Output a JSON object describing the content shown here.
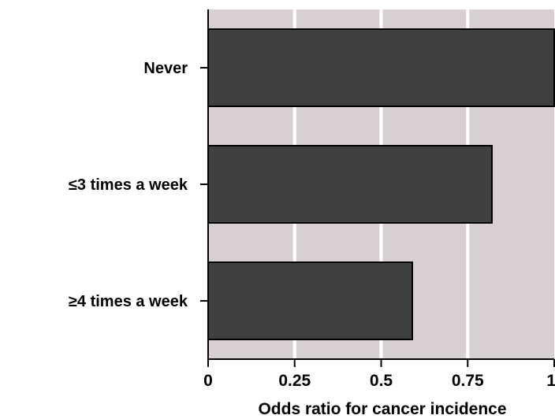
{
  "chart_data": {
    "type": "bar",
    "orientation": "horizontal",
    "categories": [
      "Never",
      "≤3 times a week",
      "≥4 times a week"
    ],
    "values": [
      1.0,
      0.82,
      0.59
    ],
    "xlabel": "Odds ratio for cancer incidence",
    "ylabel": "",
    "xlim": [
      0,
      1
    ],
    "xticks": [
      0,
      0.25,
      0.5,
      0.75,
      1
    ],
    "xtick_labels": [
      "0",
      "0.25",
      "0.5",
      "0.75",
      "1"
    ],
    "grid": true,
    "colors": {
      "plot_background": "#d8d0d0",
      "bar_fill": "#404040",
      "bar_stroke": "#000000",
      "gridline": "#ffffff"
    }
  }
}
